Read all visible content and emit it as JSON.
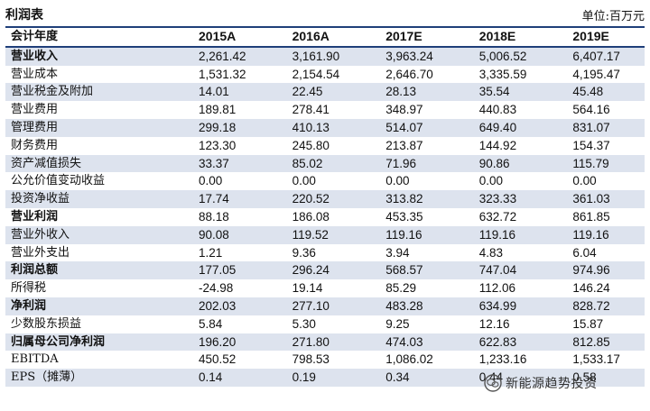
{
  "title": "利润表",
  "unit": "单位:百万元",
  "columns": [
    "会计年度",
    "2015A",
    "2016A",
    "2017E",
    "2018E",
    "2019E"
  ],
  "rows": [
    {
      "label": "营业收入",
      "bold": true,
      "values": [
        "2,261.42",
        "3,161.90",
        "3,963.24",
        "5,006.52",
        "6,407.17"
      ]
    },
    {
      "label": "营业成本",
      "bold": false,
      "values": [
        "1,531.32",
        "2,154.54",
        "2,646.70",
        "3,335.59",
        "4,195.47"
      ]
    },
    {
      "label": "营业税金及附加",
      "bold": false,
      "values": [
        "14.01",
        "22.45",
        "28.13",
        "35.54",
        "45.48"
      ]
    },
    {
      "label": "营业费用",
      "bold": false,
      "values": [
        "189.81",
        "278.41",
        "348.97",
        "440.83",
        "564.16"
      ]
    },
    {
      "label": "管理费用",
      "bold": false,
      "values": [
        "299.18",
        "410.13",
        "514.07",
        "649.40",
        "831.07"
      ]
    },
    {
      "label": "财务费用",
      "bold": false,
      "values": [
        "123.30",
        "245.80",
        "213.87",
        "144.92",
        "154.37"
      ]
    },
    {
      "label": "资产减值损失",
      "bold": false,
      "values": [
        "33.37",
        "85.02",
        "71.96",
        "90.86",
        "115.79"
      ]
    },
    {
      "label": "公允价值变动收益",
      "bold": false,
      "values": [
        "0.00",
        "0.00",
        "0.00",
        "0.00",
        "0.00"
      ]
    },
    {
      "label": "投资净收益",
      "bold": false,
      "values": [
        "17.74",
        "220.52",
        "313.82",
        "323.33",
        "361.03"
      ]
    },
    {
      "label": "营业利润",
      "bold": true,
      "values": [
        "88.18",
        "186.08",
        "453.35",
        "632.72",
        "861.85"
      ]
    },
    {
      "label": "营业外收入",
      "bold": false,
      "values": [
        "90.08",
        "119.52",
        "119.16",
        "119.16",
        "119.16"
      ]
    },
    {
      "label": "营业外支出",
      "bold": false,
      "values": [
        "1.21",
        "9.36",
        "3.94",
        "4.83",
        "6.04"
      ]
    },
    {
      "label": "利润总额",
      "bold": true,
      "values": [
        "177.05",
        "296.24",
        "568.57",
        "747.04",
        "974.96"
      ]
    },
    {
      "label": "所得税",
      "bold": false,
      "values": [
        "-24.98",
        "19.14",
        "85.29",
        "112.06",
        "146.24"
      ]
    },
    {
      "label": "净利润",
      "bold": true,
      "values": [
        "202.03",
        "277.10",
        "483.28",
        "634.99",
        "828.72"
      ]
    },
    {
      "label": "少数股东损益",
      "bold": false,
      "values": [
        "5.84",
        "5.30",
        "9.25",
        "12.16",
        "15.87"
      ]
    },
    {
      "label": "归属母公司净利润",
      "bold": true,
      "values": [
        "196.20",
        "271.80",
        "474.03",
        "622.83",
        "812.85"
      ]
    },
    {
      "label": "EBITDA",
      "bold": false,
      "values": [
        "450.52",
        "798.53",
        "1,086.02",
        "1,233.16",
        "1,533.17"
      ]
    },
    {
      "label": "EPS（摊薄）",
      "bold": false,
      "values": [
        "0.14",
        "0.19",
        "0.34",
        "0.44",
        "0.58"
      ]
    }
  ],
  "watermark": {
    "text": "新能源趋势投资",
    "icon": "wechat-icon",
    "color": "#333333"
  },
  "colors": {
    "accent": "#1f3f7a",
    "shade": "#dde3ee"
  }
}
